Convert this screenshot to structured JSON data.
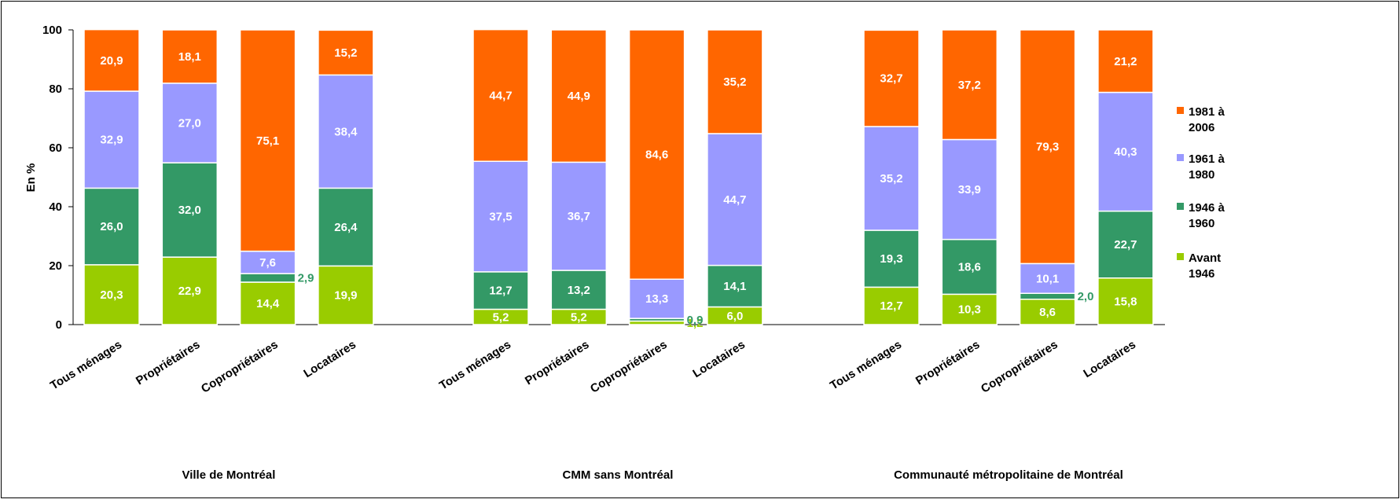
{
  "chart_data": {
    "type": "bar",
    "stacked": true,
    "ylabel": "En %",
    "ylim": [
      0,
      100
    ],
    "yticks": [
      "0",
      "20",
      "40",
      "60",
      "80",
      "100"
    ],
    "grid": false,
    "legend_position": "right",
    "groups": [
      {
        "name": "Ville de Montréal",
        "categories": [
          "Tous ménages",
          "Propriétaires",
          "Copropriétaires",
          "Locataires"
        ],
        "values": {
          "Avant 1946": [
            20.3,
            22.9,
            14.4,
            19.9
          ],
          "1946 à 1960": [
            26.0,
            32.0,
            2.9,
            26.4
          ],
          "1961 à 1980": [
            32.9,
            27.0,
            7.6,
            38.4
          ],
          "1981 à 2006": [
            20.9,
            18.1,
            75.1,
            15.2
          ]
        },
        "labels": {
          "Avant 1946": [
            "20,3",
            "22,9",
            "14,4",
            "19,9"
          ],
          "1946 à 1960": [
            "26,0",
            "32,0",
            "2,9",
            "26,4"
          ],
          "1961 à 1980": [
            "32,9",
            "27,0",
            "7,6",
            "38,4"
          ],
          "1981 à 2006": [
            "20,9",
            "18,1",
            "75,1",
            "15,2"
          ]
        }
      },
      {
        "name": "CMM sans Montréal",
        "categories": [
          "Tous ménages",
          "Propriétaires",
          "Copropriétaires",
          "Locataires"
        ],
        "values": {
          "Avant 1946": [
            5.2,
            5.2,
            1.2,
            6.0
          ],
          "1946 à 1960": [
            12.7,
            13.2,
            0.9,
            14.1
          ],
          "1961 à 1980": [
            37.5,
            36.7,
            13.3,
            44.7
          ],
          "1981 à 2006": [
            44.7,
            44.9,
            84.6,
            35.2
          ]
        },
        "labels": {
          "Avant 1946": [
            "5,2",
            "5,2",
            "1,2",
            "6,0"
          ],
          "1946 à 1960": [
            "12,7",
            "13,2",
            "0,9",
            "14,1"
          ],
          "1961 à 1980": [
            "37,5",
            "36,7",
            "13,3",
            "44,7"
          ],
          "1981 à 2006": [
            "44,7",
            "44,9",
            "84,6",
            "35,2"
          ]
        }
      },
      {
        "name": "Communauté métropolitaine de Montréal",
        "categories": [
          "Tous ménages",
          "Propriétaires",
          "Copropriétaires",
          "Locataires"
        ],
        "values": {
          "Avant 1946": [
            12.7,
            10.3,
            8.6,
            15.8
          ],
          "1946 à 1960": [
            19.3,
            18.6,
            2.0,
            22.7
          ],
          "1961 à 1980": [
            35.2,
            33.9,
            10.1,
            40.3
          ],
          "1981 à 2006": [
            32.7,
            37.2,
            79.3,
            21.2
          ]
        },
        "labels": {
          "Avant 1946": [
            "12,7",
            "10,3",
            "8,6",
            "15,8"
          ],
          "1946 à 1960": [
            "19,3",
            "18,6",
            "2,0",
            "22,7"
          ],
          "1961 à 1980": [
            "35,2",
            "33,9",
            "10,1",
            "40,3"
          ],
          "1981 à 2006": [
            "32,7",
            "37,2",
            "79,3",
            "21,2"
          ]
        }
      }
    ],
    "series": [
      {
        "name": "Avant 1946",
        "legend_lines": [
          "Avant",
          "1946"
        ],
        "color": "#99cc00"
      },
      {
        "name": "1946 à 1960",
        "legend_lines": [
          "1946 à",
          "1960"
        ],
        "color": "#339966"
      },
      {
        "name": "1961 à 1980",
        "legend_lines": [
          "1961 à",
          "1980"
        ],
        "color": "#9999ff"
      },
      {
        "name": "1981 à 2006",
        "legend_lines": [
          "1981 à",
          "2006"
        ],
        "color": "#ff6600"
      }
    ]
  }
}
